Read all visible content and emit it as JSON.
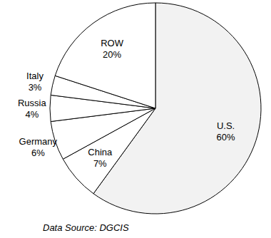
{
  "chart_data": {
    "type": "pie",
    "categories": [
      "U.S.",
      "China",
      "Germany",
      "Russia",
      "Italy",
      "ROW"
    ],
    "values": [
      60,
      7,
      6,
      4,
      3,
      20
    ],
    "value_labels": [
      "60%",
      "7%",
      "6%",
      "4%",
      "3%",
      "20%"
    ],
    "colors": [
      "#f2f2f2",
      "#ffffff",
      "#ffffff",
      "#ffffff",
      "#ffffff",
      "#ffffff"
    ],
    "data_labels": true,
    "annotations": [
      "Data Source: DGCIS"
    ]
  }
}
